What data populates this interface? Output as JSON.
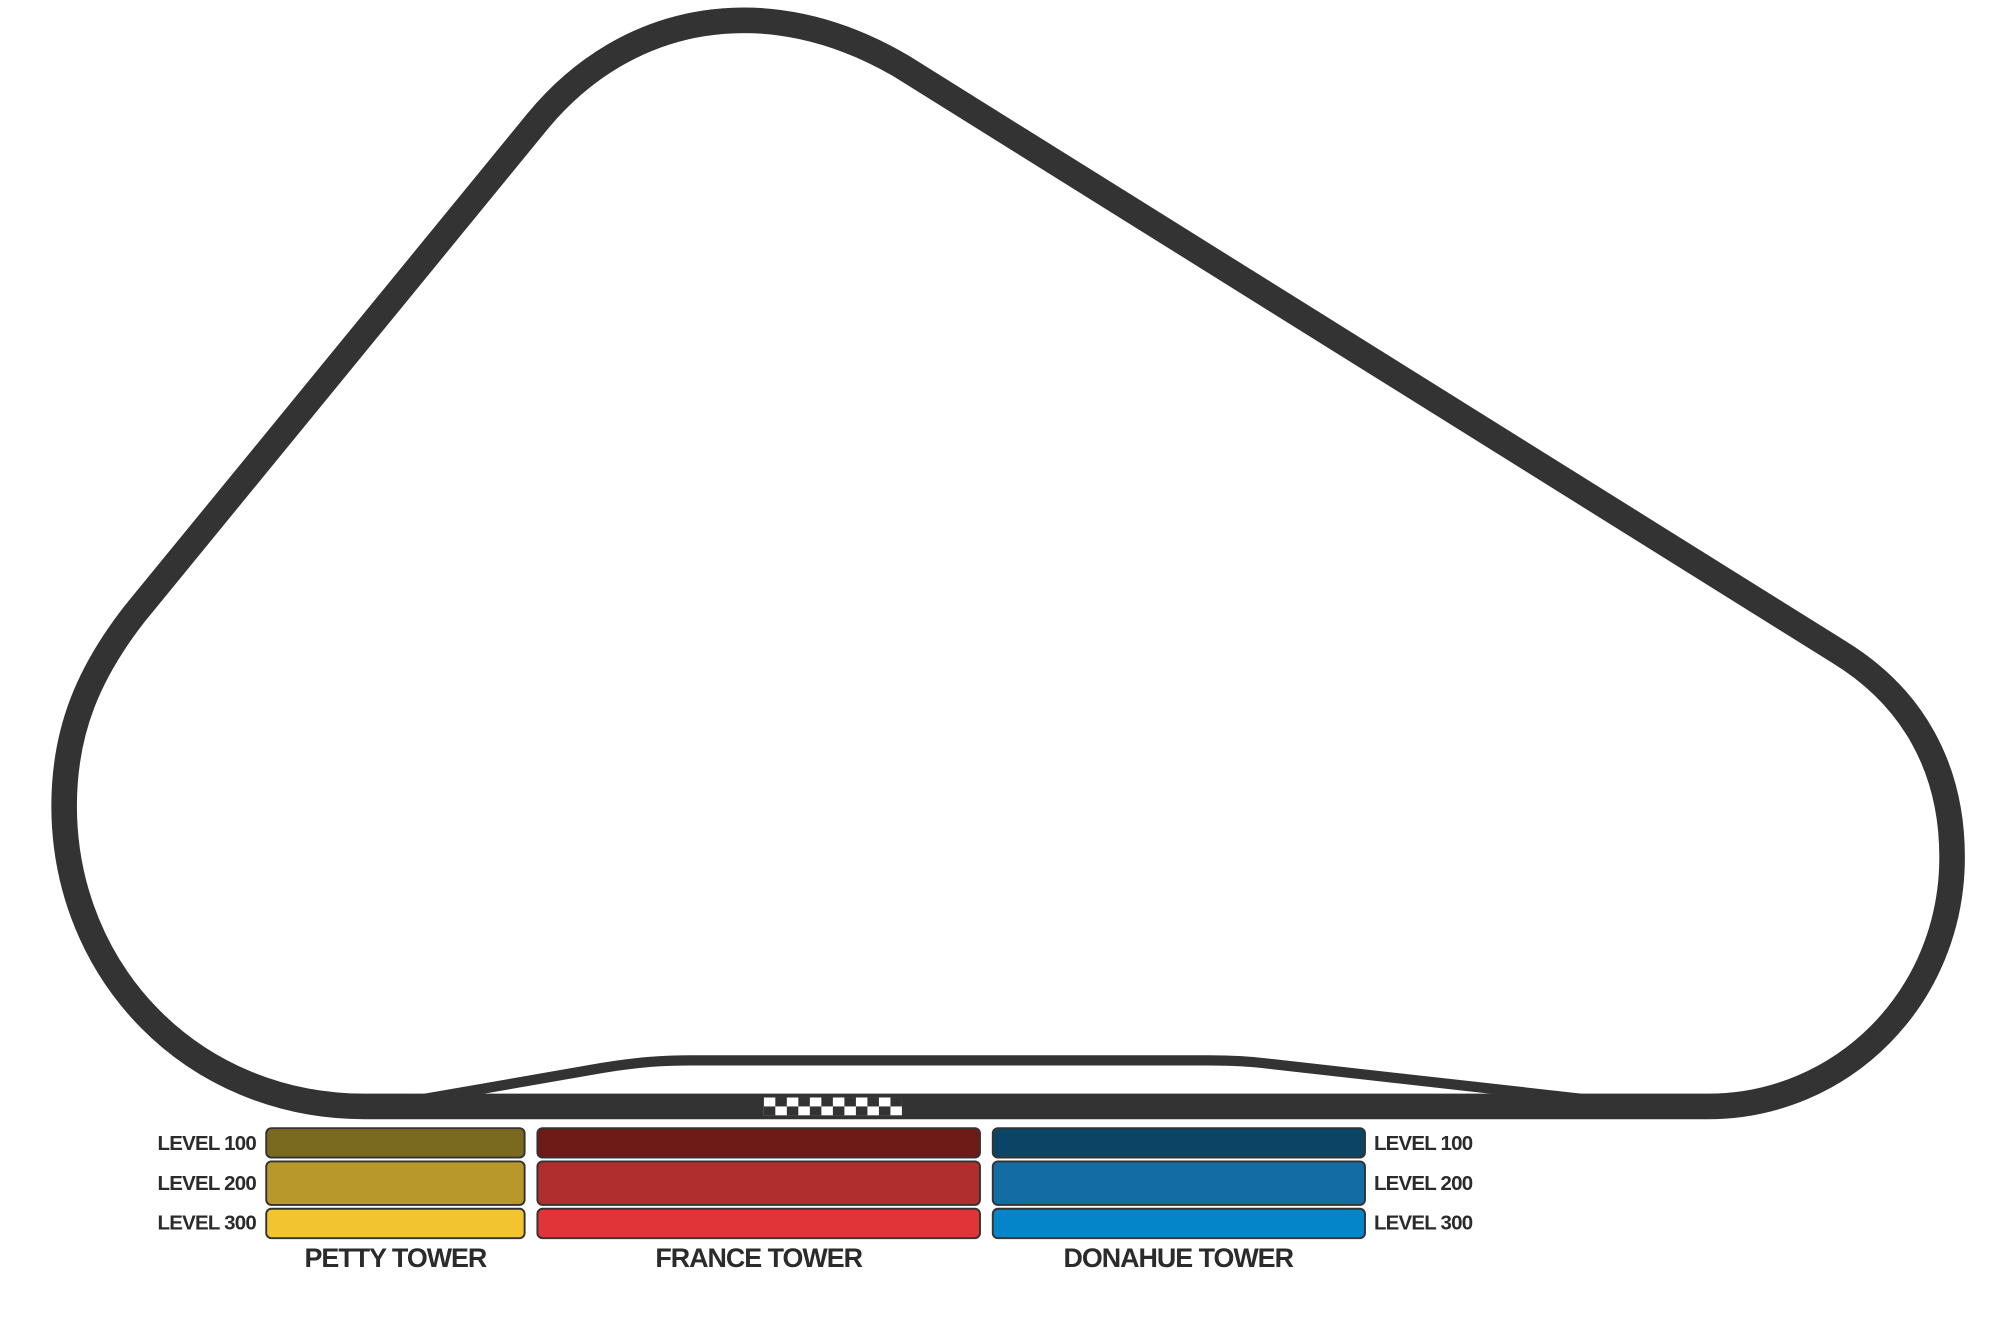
{
  "towers": [
    {
      "name": "PETTY TOWER"
    },
    {
      "name": "FRANCE TOWER"
    },
    {
      "name": "DONAHUE TOWER"
    }
  ],
  "level_labels_left": [
    "LEVEL 100",
    "LEVEL 200",
    "LEVEL 300"
  ],
  "level_labels_right": [
    "LEVEL 100",
    "LEVEL 200",
    "LEVEL 300"
  ]
}
